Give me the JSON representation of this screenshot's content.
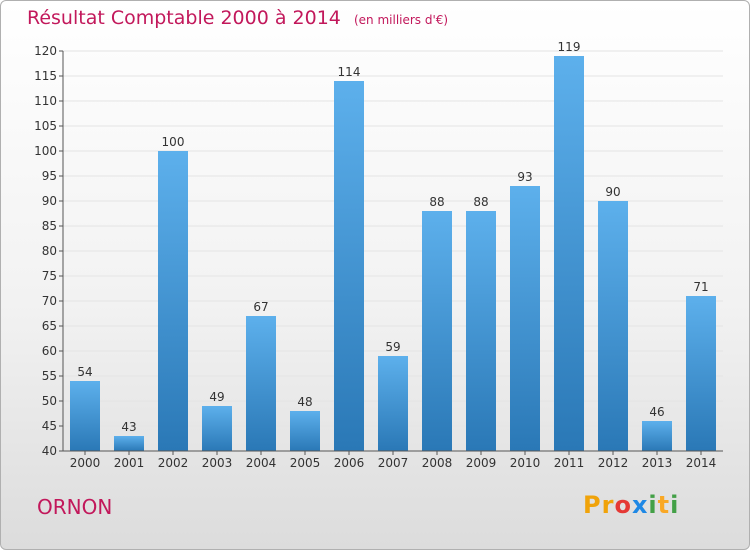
{
  "page": {
    "title": "Résultat Comptable 2000 à 2014",
    "unit": "(en milliers d'€)",
    "commune": "ORNON",
    "logo": "Proxiti"
  },
  "colors": {
    "title": "#c2185b",
    "bar_top": "#5db0ec",
    "bar_bottom": "#2a78b6",
    "grid": "#e4e4e4"
  },
  "chart_data": {
    "type": "bar",
    "categories": [
      "2000",
      "2001",
      "2002",
      "2003",
      "2004",
      "2005",
      "2006",
      "2007",
      "2008",
      "2009",
      "2010",
      "2011",
      "2012",
      "2013",
      "2014"
    ],
    "values": [
      54,
      43,
      100,
      49,
      67,
      48,
      114,
      59,
      88,
      88,
      93,
      119,
      90,
      46,
      71
    ],
    "title": "Résultat Comptable 2000 à 2014",
    "xlabel": "",
    "ylabel": "",
    "ylim": [
      40,
      120
    ],
    "yticks": [
      40,
      45,
      50,
      55,
      60,
      65,
      70,
      75,
      80,
      85,
      90,
      95,
      100,
      105,
      110,
      115,
      120
    ],
    "grid": true,
    "legend": "none"
  }
}
